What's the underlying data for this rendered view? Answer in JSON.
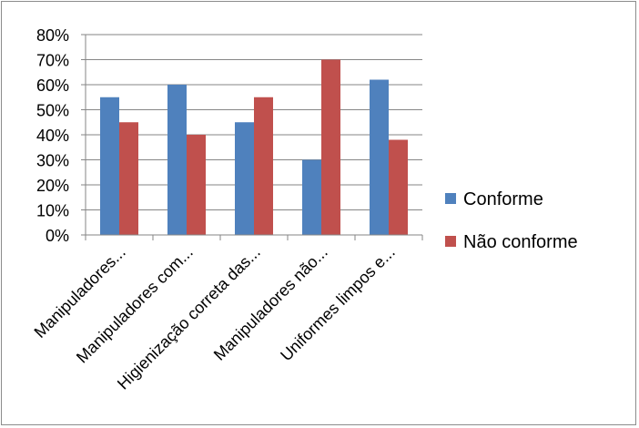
{
  "chart_data": {
    "type": "bar",
    "categories": [
      "Manipuladores...",
      "Manipuladores com...",
      "Higienização correta das...",
      "Manipuladores não...",
      "Uniformes limpos e..."
    ],
    "series": [
      {
        "name": "Conforme",
        "color": "#4f81bd",
        "values": [
          55,
          60,
          45,
          30,
          62
        ]
      },
      {
        "name": "Não conforme",
        "color": "#c0504d",
        "values": [
          45,
          40,
          55,
          70,
          38
        ]
      }
    ],
    "yticks": [
      "0%",
      "10%",
      "20%",
      "30%",
      "40%",
      "50%",
      "60%",
      "70%",
      "80%"
    ],
    "ylim": [
      0,
      80
    ],
    "grid": true,
    "legend_position": "right"
  }
}
